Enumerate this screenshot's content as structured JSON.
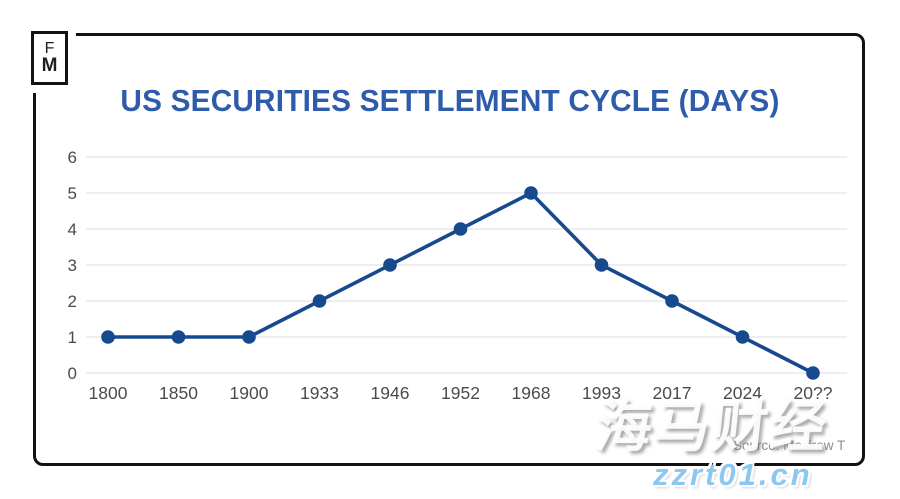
{
  "title": {
    "text": "US SECURITIES SETTLEMENT CYCLE (DAYS)",
    "color": "#2f5caa"
  },
  "logo": {
    "top": "F",
    "bottom": "M"
  },
  "footer": {
    "source": "Source: Mesirow T"
  },
  "watermarks": {
    "cjk": "海马财经",
    "domain": "zzrt01.cn",
    "domain_color": "#8cc7f1"
  },
  "colors": {
    "line": "#17498f",
    "marker": "#17498f",
    "grid": "#e9e9ed",
    "tick_label": "#4b4b4b",
    "card_border": "#121212"
  },
  "chart_data": {
    "type": "line",
    "categories": [
      "1800",
      "1850",
      "1900",
      "1933",
      "1946",
      "1952",
      "1968",
      "1993",
      "2017",
      "2024",
      "20??"
    ],
    "values": [
      1,
      1,
      1,
      2,
      3,
      4,
      5,
      3,
      2,
      1,
      0
    ],
    "title": "US SECURITIES SETTLEMENT CYCLE (DAYS)",
    "xlabel": "",
    "ylabel": "",
    "ylim": [
      0,
      6
    ],
    "yticks": [
      0,
      1,
      2,
      3,
      4,
      5,
      6
    ],
    "grid": true,
    "legend": false,
    "marker": "circle"
  }
}
